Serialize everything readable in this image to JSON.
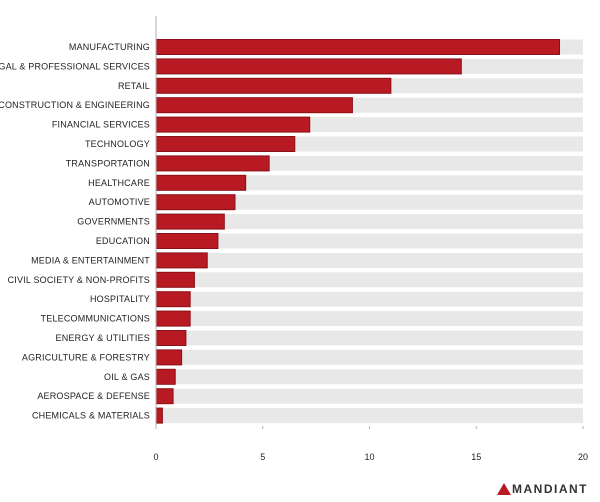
{
  "chart_data": {
    "type": "bar",
    "orientation": "horizontal",
    "categories": [
      "MANUFACTURING",
      "LEGAL & PROFESSIONAL SERVICES",
      "RETAIL",
      "CONSTRUCTION & ENGINEERING",
      "FINANCIAL SERVICES",
      "TECHNOLOGY",
      "TRANSPORTATION",
      "HEALTHCARE",
      "AUTOMOTIVE",
      "GOVERNMENTS",
      "EDUCATION",
      "MEDIA & ENTERTAINMENT",
      "CIVIL SOCIETY & NON-PROFITS",
      "HOSPITALITY",
      "TELECOMMUNICATIONS",
      "ENERGY & UTILITIES",
      "AGRICULTURE & FORESTRY",
      "OIL & GAS",
      "AEROSPACE & DEFENSE",
      "CHEMICALS & MATERIALS"
    ],
    "values": [
      18.9,
      14.3,
      11.0,
      9.2,
      7.2,
      6.5,
      5.3,
      4.2,
      3.7,
      3.2,
      2.9,
      2.4,
      1.8,
      1.6,
      1.6,
      1.4,
      1.2,
      0.9,
      0.8,
      0.3
    ],
    "title": "",
    "xlabel": "",
    "ylabel": "",
    "xlim": [
      0,
      20
    ],
    "xticks": [
      "0",
      "5",
      "10",
      "15",
      "20"
    ],
    "grid": false,
    "bar_color": "#b81a24",
    "track_color": "#e8e8e8"
  },
  "brand": {
    "name": "MANDIANT",
    "accent_color": "#b81a24"
  }
}
